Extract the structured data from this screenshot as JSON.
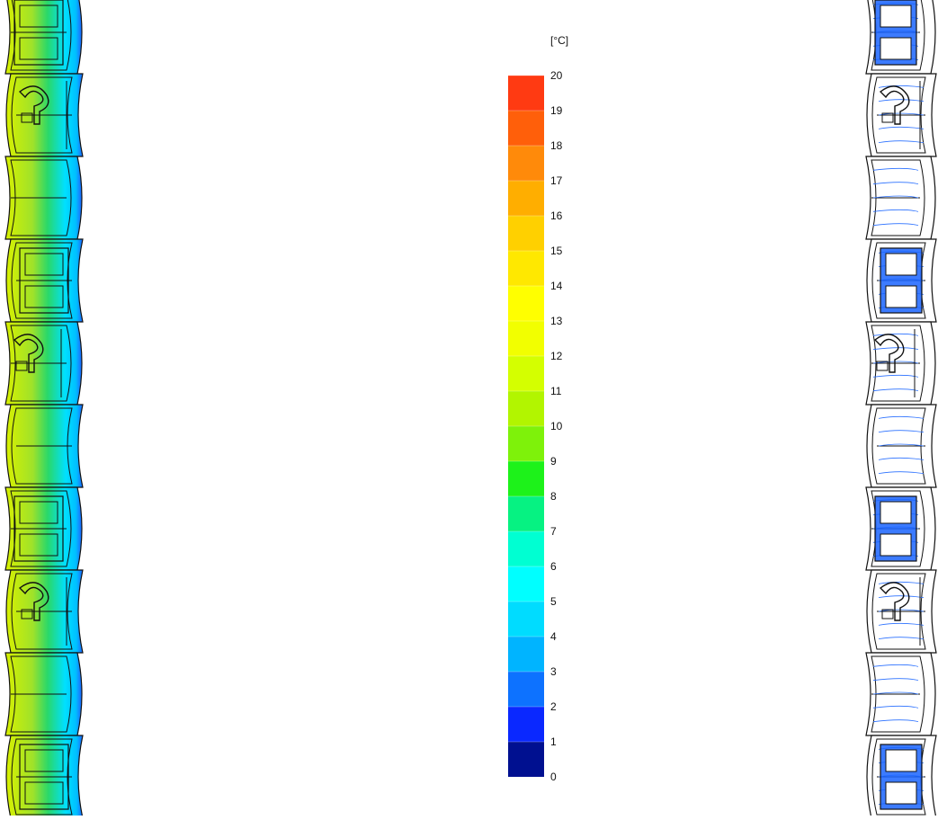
{
  "legend": {
    "unit": "[°C]",
    "ticks": [
      "20",
      "19",
      "18",
      "17",
      "16",
      "15",
      "14",
      "13",
      "12",
      "11",
      "10",
      "9",
      "8",
      "7",
      "6",
      "5",
      "4",
      "3",
      "2",
      "1",
      "0"
    ],
    "band_colors": [
      "#ff3a12",
      "#ff5f0a",
      "#ff8a0a",
      "#ffae00",
      "#ffd000",
      "#ffe800",
      "#ffff00",
      "#f2ff00",
      "#d4ff00",
      "#b2f500",
      "#7ef20a",
      "#1df21a",
      "#06f282",
      "#00ffd2",
      "#00ffff",
      "#00dcff",
      "#00b4ff",
      "#0d72ff",
      "#0a28ff",
      "#001090"
    ]
  },
  "section_left": {
    "segment_pattern": [
      "grid",
      "clip",
      "slab",
      "grid",
      "clip",
      "slab",
      "grid",
      "clip",
      "slab",
      "grid"
    ],
    "colors": {
      "outer": "#d8f000",
      "mid": "#29d86a",
      "inner": "#00e0ff",
      "edge": "#1f62ff",
      "line": "#111111"
    }
  },
  "section_right": {
    "segment_pattern": [
      "grid",
      "clip",
      "slab",
      "grid",
      "clip",
      "slab",
      "grid",
      "clip",
      "slab",
      "grid"
    ],
    "colors": {
      "fill": "#ffffff",
      "flow": "#2a70ff",
      "insert": "#1a64ff",
      "line": "#111111"
    }
  }
}
